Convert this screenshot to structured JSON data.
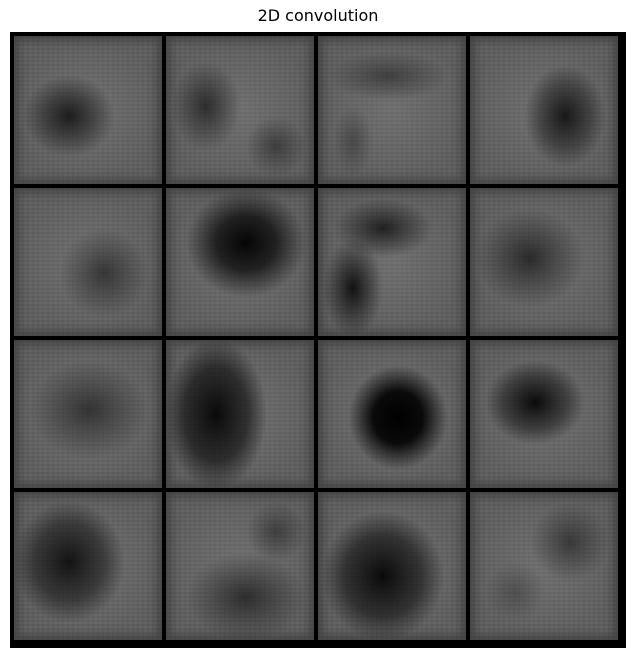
{
  "figure": {
    "title": "2D convolution"
  },
  "grid": {
    "rows": 4,
    "cols": 4
  }
}
